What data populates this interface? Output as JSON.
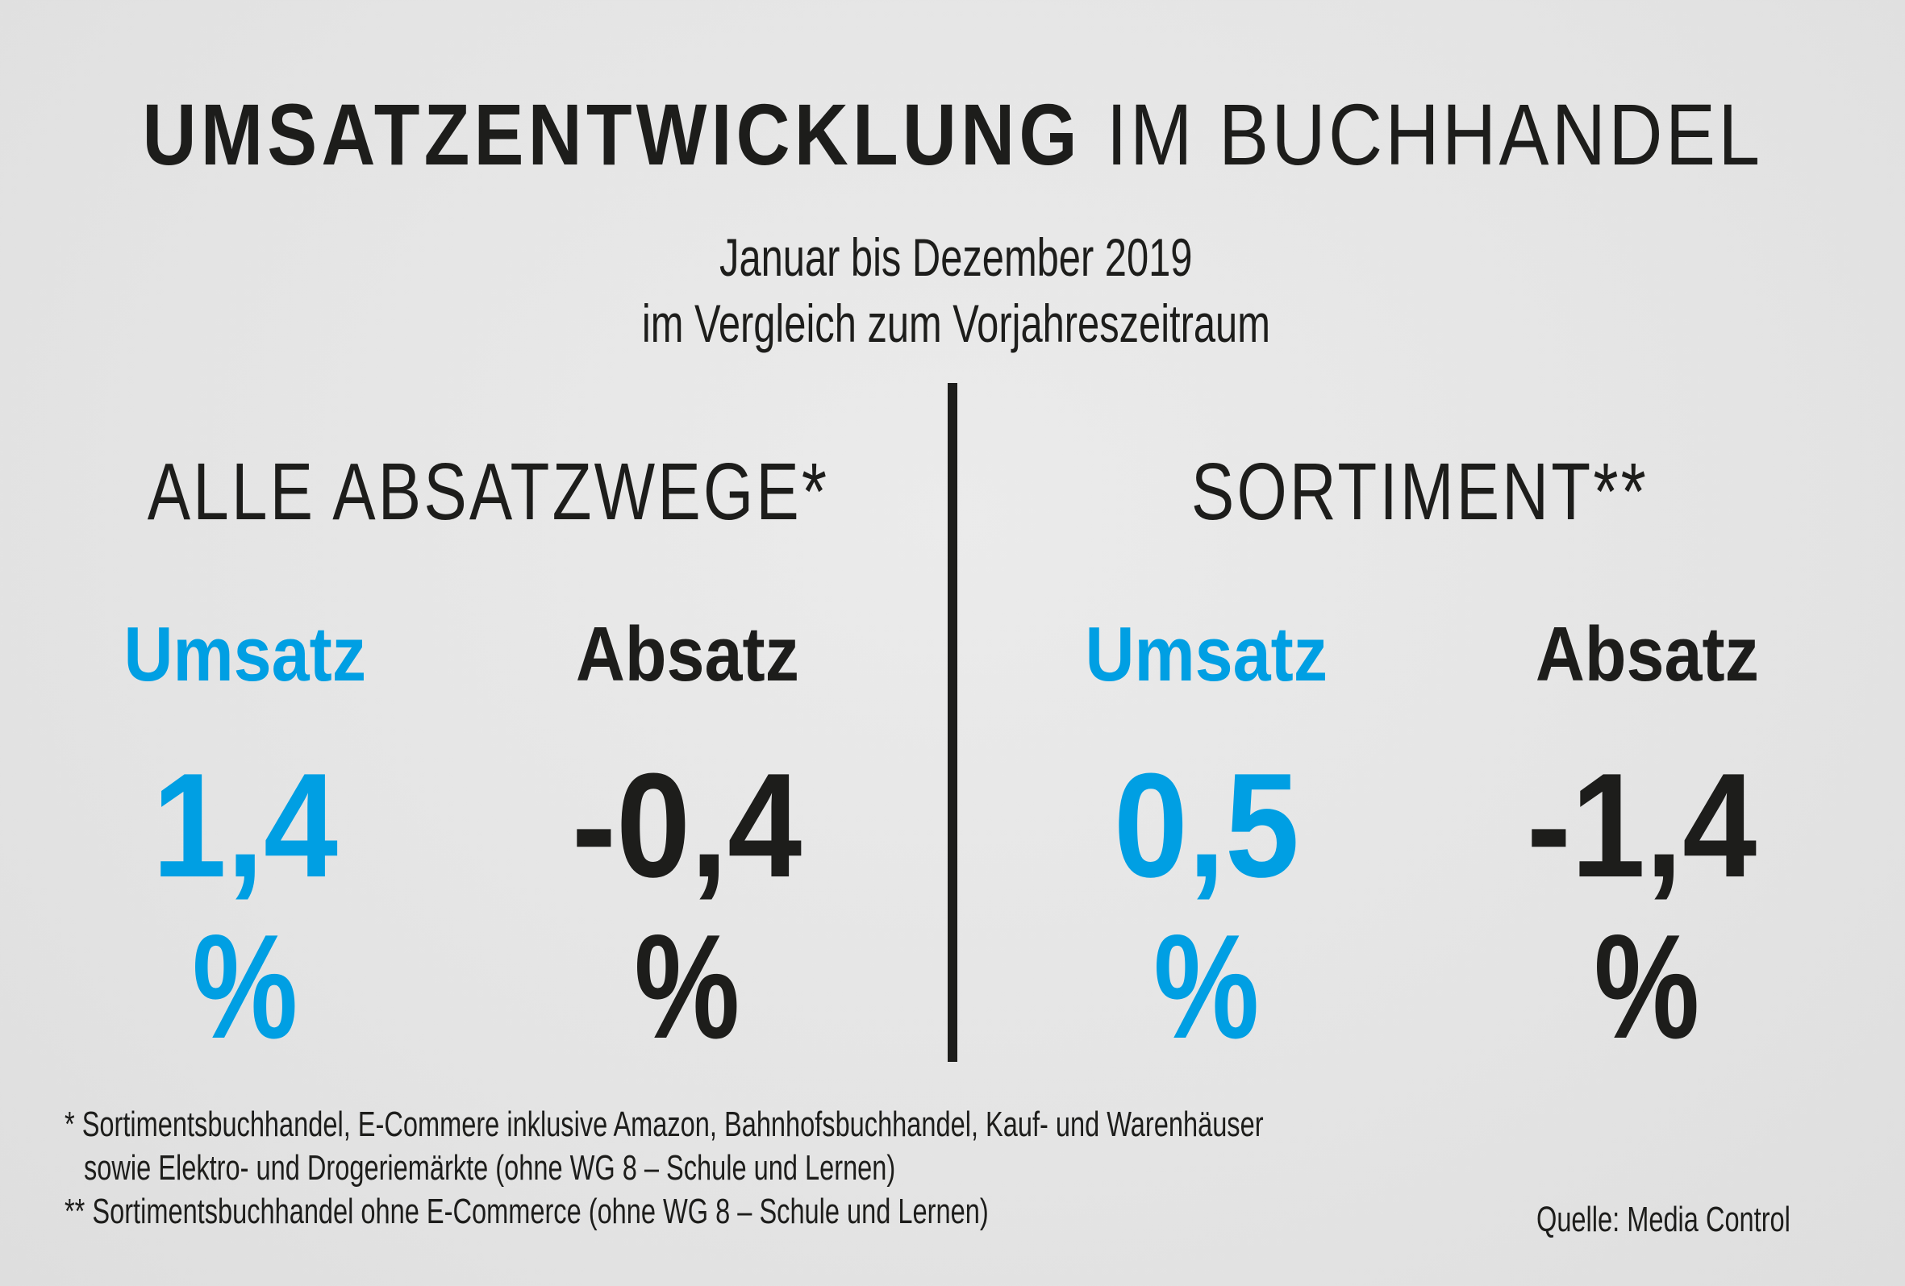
{
  "title": {
    "bold": "UMSATZENTWICKLUNG",
    "light": "IM BUCHHANDEL"
  },
  "subtitle": {
    "line1": "Januar bis Dezember 2019",
    "line2": "im Vergleich zum Vorjahreszeitraum"
  },
  "sections": [
    {
      "heading": "ALLE ABSATZWEGE*",
      "metrics": [
        {
          "label": "Umsatz",
          "value": "1,4",
          "unit": "%",
          "color": "#009fe3"
        },
        {
          "label": "Absatz",
          "value": "-0,4",
          "unit": "%",
          "color": "#1d1d1b"
        }
      ]
    },
    {
      "heading": "SORTIMENT**",
      "metrics": [
        {
          "label": "Umsatz",
          "value": "0,5",
          "unit": "%",
          "color": "#009fe3"
        },
        {
          "label": "Absatz",
          "value": "-1,4",
          "unit": "%",
          "color": "#1d1d1b"
        }
      ]
    }
  ],
  "footnotes": {
    "note1_line1": "* Sortimentsbuchhandel, E-Commere inklusive Amazon, Bahnhofsbuchhandel, Kauf- und Warenhäuser",
    "note1_line2": "sowie Elektro- und Drogeriemärkte (ohne WG 8 – Schule und Lernen)",
    "note2": "** Sortimentsbuchhandel ohne E-Commerce (ohne WG 8 – Schule und Lernen)"
  },
  "source": "Quelle: Media Control",
  "colors": {
    "accent": "#009fe3",
    "text": "#1d1d1b",
    "background": "#e6e6e6"
  }
}
